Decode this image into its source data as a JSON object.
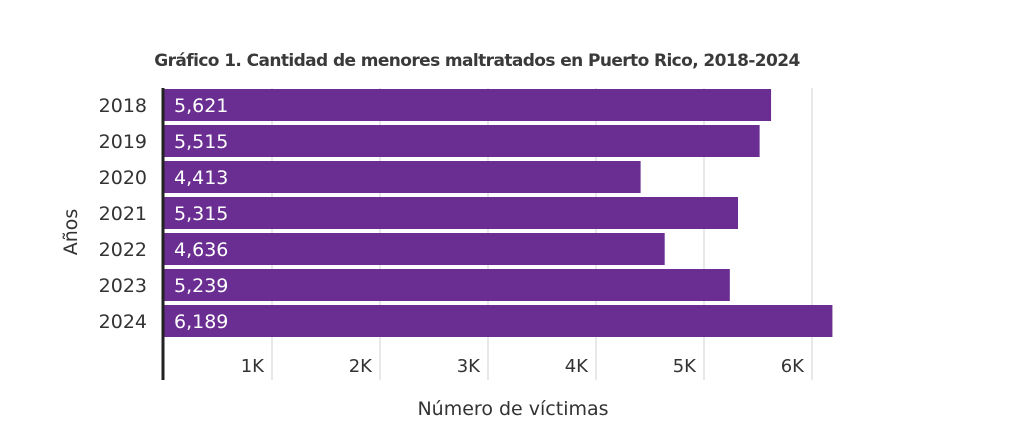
{
  "chart_data": {
    "type": "bar",
    "orientation": "horizontal",
    "title": "Gráfico 1. Cantidad de menores maltratados en Puerto Rico, 2018-2024",
    "xlabel": "Número de víctimas",
    "ylabel": "Años",
    "categories": [
      "2018",
      "2019",
      "2020",
      "2021",
      "2022",
      "2023",
      "2024"
    ],
    "values": [
      5621,
      5515,
      4413,
      5315,
      4636,
      5239,
      6189
    ],
    "data_labels": [
      "5,621",
      "5,515",
      "4,413",
      "5,315",
      "4,636",
      "5,239",
      "6,189"
    ],
    "xticks": [
      1000,
      2000,
      3000,
      4000,
      5000,
      6000
    ],
    "xtick_labels": [
      "1K",
      "2K",
      "3K",
      "4K",
      "5K",
      "6K"
    ],
    "xlim": [
      0,
      6300
    ],
    "grid": true,
    "legend": "none",
    "colors": {
      "bar": "#6a2d91",
      "text": "#333333",
      "grid": "#d9d9d9",
      "axis": "#222222"
    }
  }
}
